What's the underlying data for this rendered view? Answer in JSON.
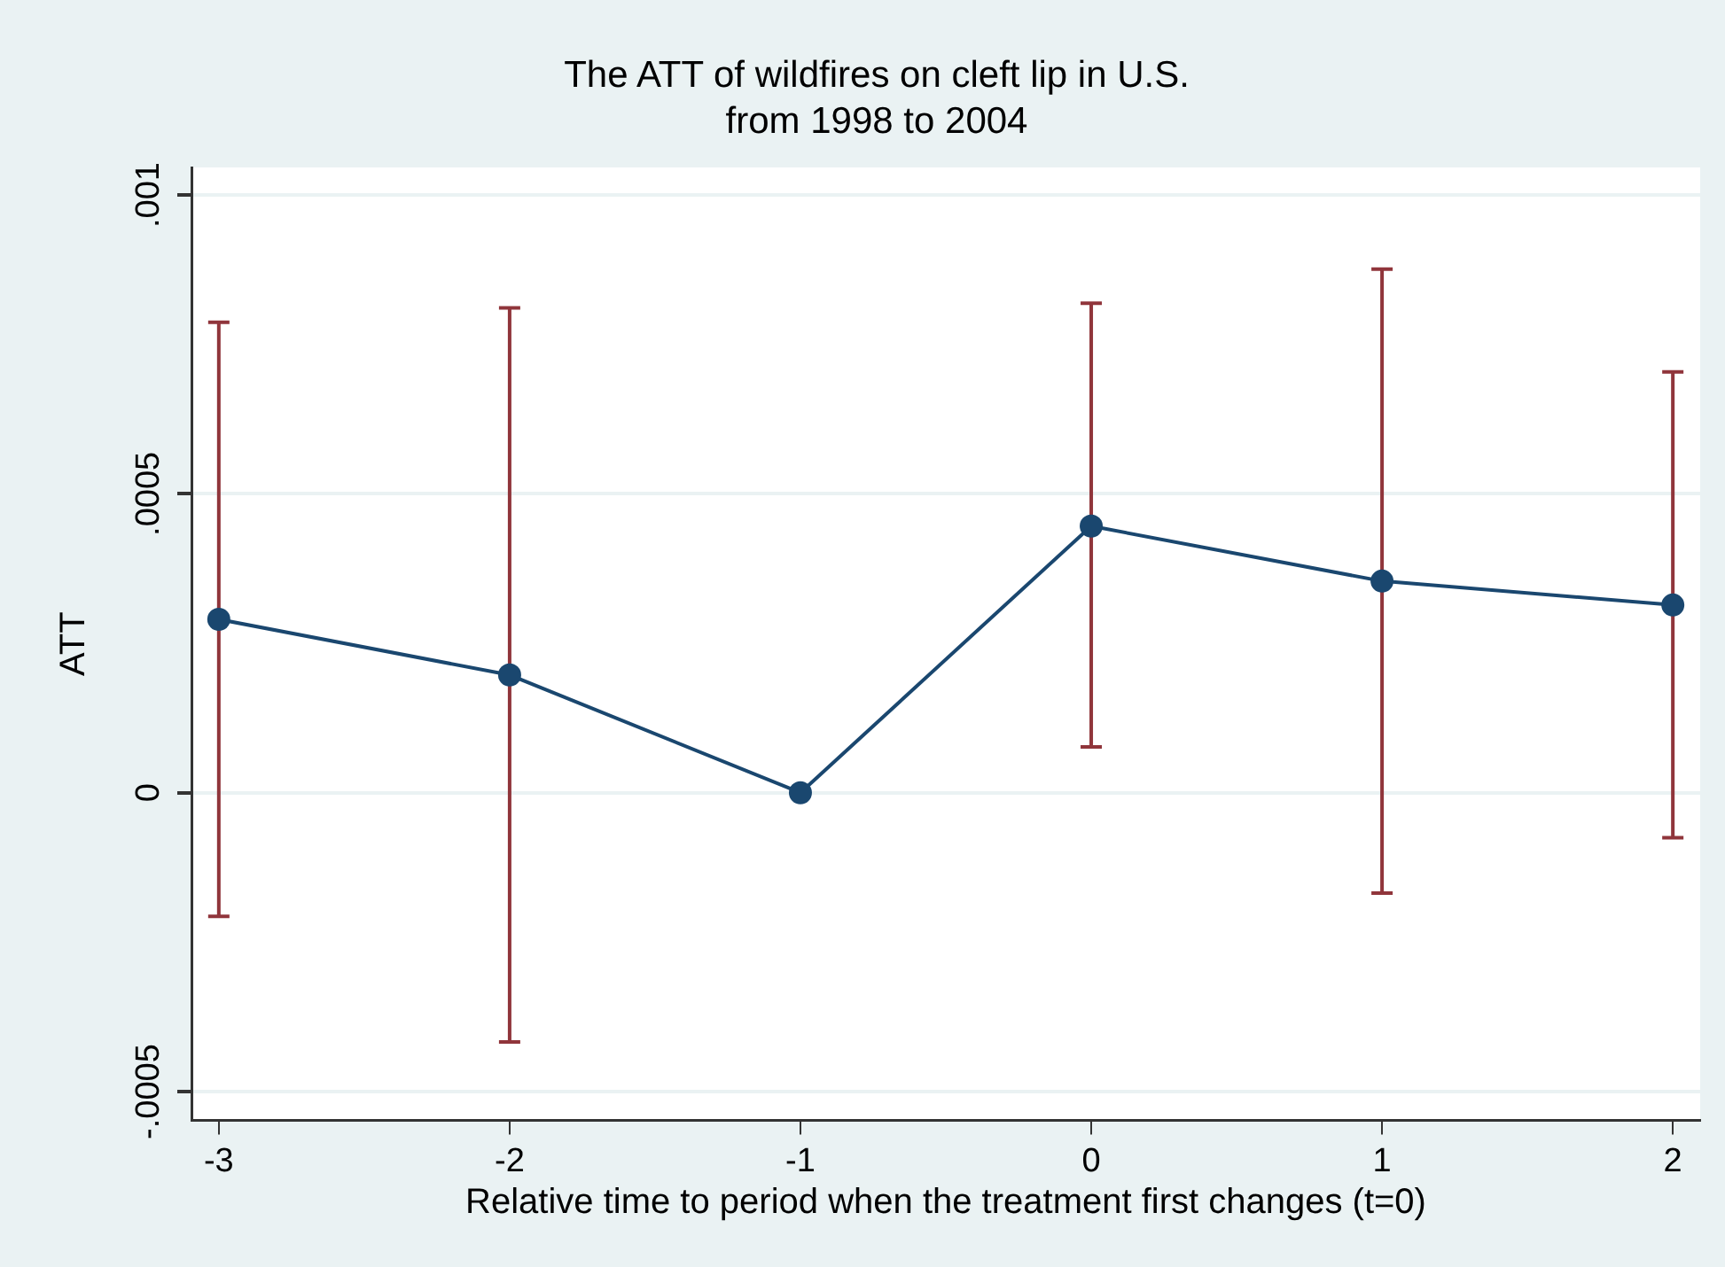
{
  "chart_data": {
    "type": "line",
    "title": [
      "The ATT of wildfires on cleft lip in U.S.",
      "from 1998 to 2004"
    ],
    "xlabel": "Relative time to period when the treatment first changes (t=0)",
    "ylabel": "ATT",
    "x": [
      -3,
      -2,
      -1,
      0,
      1,
      2
    ],
    "series": [
      {
        "color": "#1a476f",
        "values": [
          0.00029,
          0.000197,
          0,
          0.000446,
          0.000354,
          0.000314
        ],
        "errors": [
          [
            -0.000207,
            0.000787
          ],
          [
            -0.000417,
            0.000811
          ],
          null,
          [
            7.65e-05,
            0.000819
          ],
          [
            -0.000168,
            0.000876
          ],
          [
            -7.53e-05,
            0.000704
          ]
        ]
      }
    ],
    "xlim": [
      -3.094,
      2.094
    ],
    "xticks": [
      -3,
      -2,
      -1,
      0,
      1,
      2
    ],
    "ylim": [
      -0.000548,
      0.001046
    ],
    "yticks": [
      {
        "value": -0.0005,
        "label": "-.0005"
      },
      {
        "value": 0,
        "label": "0"
      },
      {
        "value": 0.0005,
        "label": ".0005"
      },
      {
        "value": 0.001,
        "label": ".001"
      }
    ],
    "grid": "y",
    "marker": "circle",
    "line_style": "solid",
    "legend": false
  }
}
